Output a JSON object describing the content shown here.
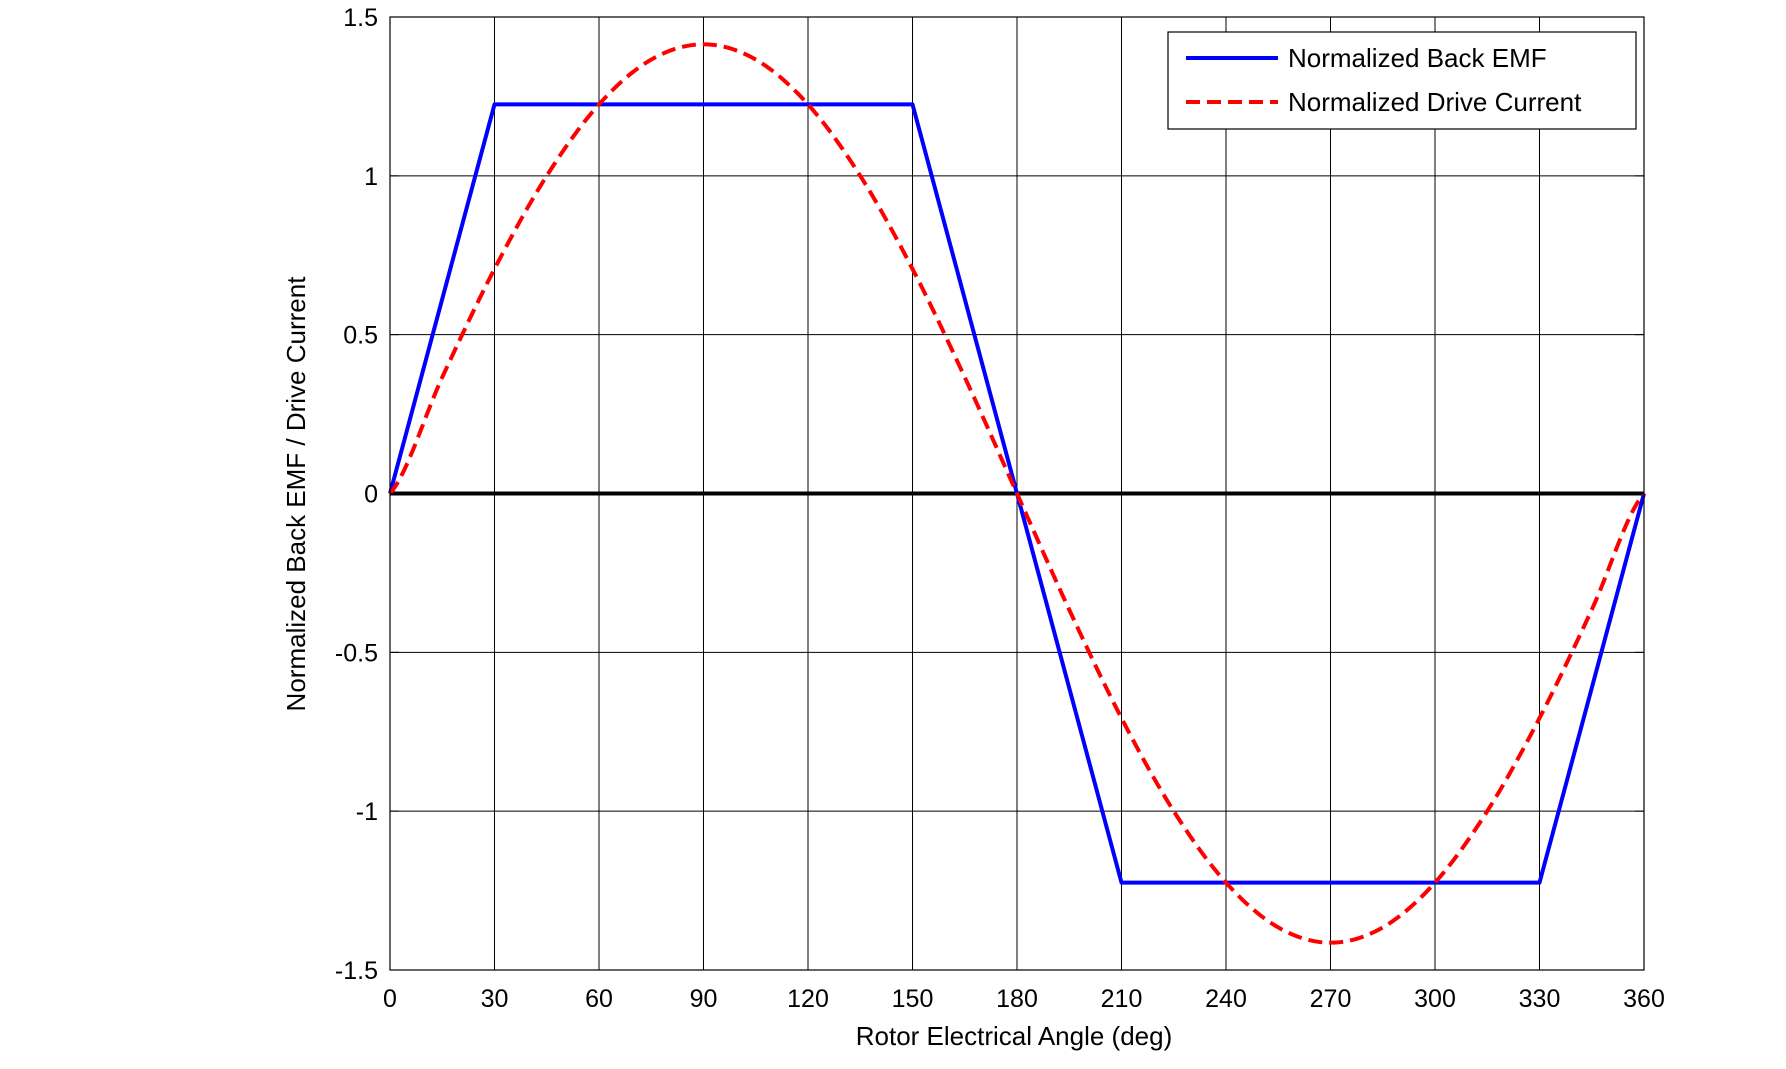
{
  "chart_data": {
    "type": "line",
    "title": "",
    "xlabel": "Rotor Electrical Angle (deg)",
    "ylabel": "Normalized Back EMF / Drive Current",
    "xlim": [
      0,
      360
    ],
    "ylim": [
      -1.5,
      1.5
    ],
    "xticks": [
      0,
      30,
      60,
      90,
      120,
      150,
      180,
      210,
      240,
      270,
      300,
      330,
      360
    ],
    "yticks": [
      -1.5,
      -1,
      -0.5,
      0,
      0.5,
      1,
      1.5
    ],
    "xtick_labels": [
      "0",
      "30",
      "60",
      "90",
      "120",
      "150",
      "180",
      "210",
      "240",
      "270",
      "300",
      "330",
      "360"
    ],
    "ytick_labels": [
      "-1.5",
      "-1",
      "-0.5",
      "0",
      "0.5",
      "1",
      "1.5"
    ],
    "grid": true,
    "zero_line": true,
    "legend_position": "top-right",
    "series": [
      {
        "name": "Normalized Back EMF",
        "color": "#0000ff",
        "line_style": "solid",
        "x": [
          0,
          30,
          150,
          210,
          330,
          360
        ],
        "y": [
          0,
          1.225,
          1.225,
          -1.225,
          -1.225,
          0
        ]
      },
      {
        "name": "Normalized Drive Current",
        "color": "#ff0000",
        "line_style": "dashed",
        "x": [
          0,
          15,
          30,
          45,
          60,
          75,
          90,
          105,
          120,
          135,
          150,
          165,
          180,
          195,
          210,
          225,
          240,
          255,
          270,
          285,
          300,
          315,
          330,
          345,
          360
        ],
        "y": [
          0,
          0.366,
          0.707,
          1.0,
          1.225,
          1.366,
          1.414,
          1.366,
          1.225,
          1.0,
          0.707,
          0.366,
          0,
          -0.366,
          -0.707,
          -1.0,
          -1.225,
          -1.366,
          -1.414,
          -1.366,
          -1.225,
          -1.0,
          -0.707,
          -0.366,
          0
        ]
      }
    ]
  }
}
